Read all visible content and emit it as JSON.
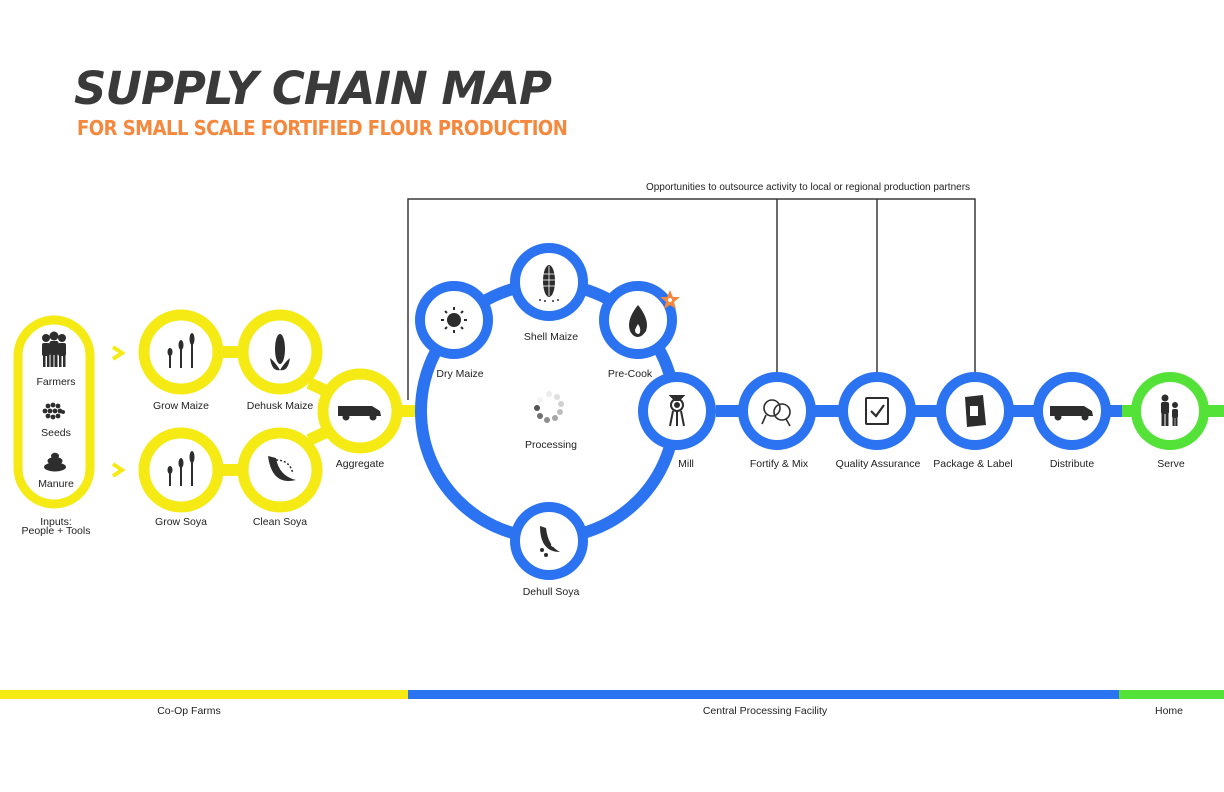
{
  "title": "SUPPLY CHAIN MAP",
  "subtitle": "FOR SMALL SCALE FORTIFIED FLOUR PRODUCTION",
  "outsource_note": "Opportunities to outsource activity to local or regional production partners",
  "colors": {
    "farms": "#f5ea14",
    "processing": "#2c73f2",
    "home": "#55e238",
    "accent": "#f5883d",
    "dark": "#3a3a3a"
  },
  "inputs": {
    "items": [
      {
        "label": "Farmers",
        "icon": "farmers-icon"
      },
      {
        "label": "Seeds",
        "icon": "seeds-icon"
      },
      {
        "label": "Manure",
        "icon": "manure-icon"
      }
    ],
    "caption_line1": "Inputs:",
    "caption_line2": "People + Tools"
  },
  "farm_steps": {
    "grow_maize": "Grow Maize",
    "dehusk_maize": "Dehusk Maize",
    "grow_soya": "Grow Soya",
    "clean_soya": "Clean Soya",
    "aggregate": "Aggregate"
  },
  "processing": {
    "dry_maize": "Dry Maize",
    "shell_maize": "Shell Maize",
    "pre_cook": "Pre-Cook",
    "dehull_soya": "Dehull Soya",
    "center": "Processing",
    "mill": "Mill",
    "fortify_mix": "Fortify & Mix",
    "quality_assurance": "Quality Assurance",
    "package_label": "Package & Label",
    "distribute": "Distribute"
  },
  "home_steps": {
    "serve": "Serve"
  },
  "stages": {
    "farms": "Co-Op Farms",
    "facility": "Central Processing Facility",
    "home": "Home"
  }
}
